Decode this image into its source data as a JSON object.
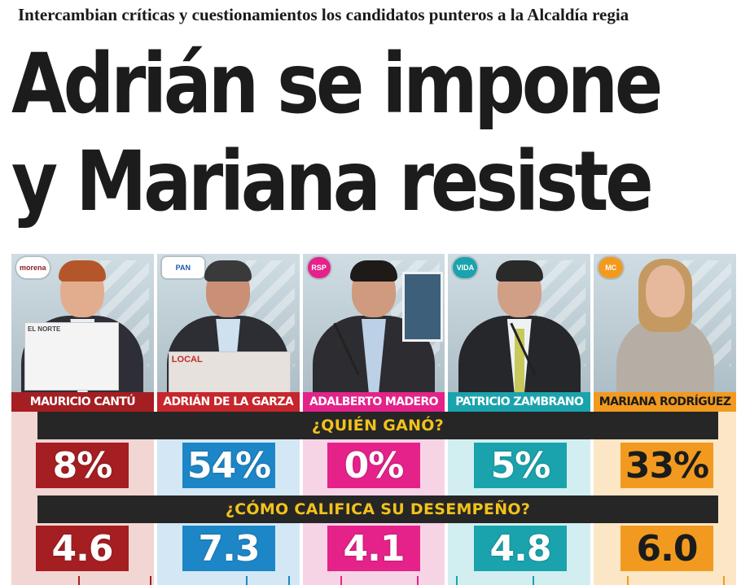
{
  "kicker": "Intercambian críticas y cuestionamientos los candidatos punteros a la Alcaldía regia",
  "headline": {
    "line1": "Adrián se impone",
    "line2": "y Mariana resiste"
  },
  "questions": {
    "who_won": "¿QUIÉN GANÓ?",
    "rating": "¿CÓMO CALIFICA SU DESEMPEÑO?"
  },
  "candidates": [
    {
      "name": "MAURICIO CANTÚ",
      "party_logo": "morena-pt-logo",
      "logo_text": "morena",
      "paper_text": "EL NORTE",
      "won_pct": "8%",
      "rating": "4.6",
      "color": "#a51e22",
      "light_color": "#f2d6d3"
    },
    {
      "name": "ADRIÁN DE LA GARZA",
      "party_logo": "pan-pri-prd-logo",
      "logo_text": "PAN",
      "paper_text": "LOCAL",
      "won_pct": "54%",
      "rating": "7.3",
      "color": "#1d86c7",
      "light_color": "#d4e7f4"
    },
    {
      "name": "ADALBERTO MADERO",
      "party_logo": "rsp-logo",
      "logo_text": "RSP",
      "paper_text": "",
      "won_pct": "0%",
      "rating": "4.1",
      "color": "#e4228a",
      "light_color": "#f7d3e6"
    },
    {
      "name": "PATRICIO ZAMBRANO",
      "party_logo": "vida-logo",
      "logo_text": "VIDA",
      "paper_text": "",
      "won_pct": "5%",
      "rating": "4.8",
      "color": "#1aa3ad",
      "light_color": "#d2eef0"
    },
    {
      "name": "MARIANA RODRÍGUEZ",
      "party_logo": "movimiento-ciudadano-logo",
      "logo_text": "MC",
      "paper_text": "",
      "won_pct": "33%",
      "rating": "6.0",
      "color": "#f29a1f",
      "light_color": "#fbe6c6"
    }
  ]
}
